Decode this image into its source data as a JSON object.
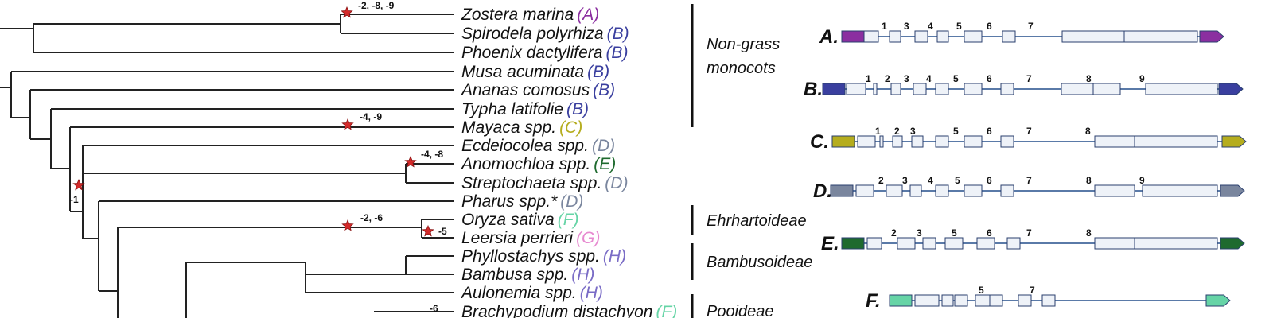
{
  "taxa": [
    {
      "name": "Zostera marina",
      "group": "(A)",
      "color": "#8b2fa0"
    },
    {
      "name": "Spirodela polyrhiza",
      "group": "(B)",
      "color": "#3a3f9f"
    },
    {
      "name": "Phoenix dactylifera",
      "group": "(B)",
      "color": "#3a3f9f"
    },
    {
      "name": "Musa acuminata",
      "group": "(B)",
      "color": "#3a3f9f"
    },
    {
      "name": "Ananas comosus",
      "group": "(B)",
      "color": "#3a3f9f"
    },
    {
      "name": "Typha latifolie",
      "group": "(B)",
      "color": "#3a3f9f"
    },
    {
      "name": "Mayaca spp.",
      "group": "(C)",
      "color": "#b5ad1e"
    },
    {
      "name": "Ecdeiocolea spp.",
      "group": "(D)",
      "color": "#7a869e"
    },
    {
      "name": "Anomochloa spp.",
      "group": "(E)",
      "color": "#1e6a2e"
    },
    {
      "name": "Streptochaeta spp.",
      "group": "(D)",
      "color": "#7a869e"
    },
    {
      "name": "Pharus spp.*",
      "group": "(D)",
      "color": "#7a869e"
    },
    {
      "name": "Oryza sativa",
      "group": "(F)",
      "color": "#66d4a6"
    },
    {
      "name": "Leersia perrieri",
      "group": "(G)",
      "color": "#e78ad0"
    },
    {
      "name": "Phyllostachys spp.",
      "group": "(H)",
      "color": "#7a6cc6"
    },
    {
      "name": "Bambusa spp.",
      "group": "(H)",
      "color": "#7a6cc6"
    },
    {
      "name": "Aulonemia spp.",
      "group": "(H)",
      "color": "#7a6cc6"
    },
    {
      "name": "Brachypodium distachyon",
      "group": "(F)",
      "color": "#66d4a6"
    }
  ],
  "events": [
    {
      "label": "-2, -8, -9",
      "node": "zostera"
    },
    {
      "label": "-4, -9",
      "node": "mayaca"
    },
    {
      "label": "-4, -8",
      "node": "anomo"
    },
    {
      "label": "-1",
      "node": "base"
    },
    {
      "label": "-2, -6",
      "node": "ehrh"
    },
    {
      "label": "-5",
      "node": "leersia"
    },
    {
      "label": "-6",
      "node": "brachy"
    }
  ],
  "groups": [
    {
      "name": "Non-grass",
      "name2": "monocots"
    },
    {
      "name": "Ehrhartoideae",
      "name2": ""
    },
    {
      "name": "Bambusoideae",
      "name2": ""
    },
    {
      "name": "Pooideae",
      "name2": ""
    }
  ],
  "genes": [
    {
      "label": "A.",
      "color": "#8b2fa0",
      "nums": [
        "1",
        "3",
        "4",
        "5",
        "6",
        "7"
      ]
    },
    {
      "label": "B.",
      "color": "#3a3f9f",
      "nums": [
        "1",
        "2",
        "3",
        "4",
        "5",
        "6",
        "7",
        "8",
        "9"
      ]
    },
    {
      "label": "C.",
      "color": "#b5ad1e",
      "nums": [
        "1",
        "2",
        "3",
        "5",
        "6",
        "7",
        "8"
      ]
    },
    {
      "label": "D.",
      "color": "#7a869e",
      "nums": [
        "2",
        "3",
        "4",
        "5",
        "6",
        "7",
        "8",
        "9"
      ]
    },
    {
      "label": "E.",
      "color": "#1e6a2e",
      "nums": [
        "2",
        "3",
        "5",
        "6",
        "7",
        "8"
      ]
    },
    {
      "label": "F.",
      "color": "#66d4a6",
      "nums": [
        "5",
        "7"
      ]
    }
  ]
}
